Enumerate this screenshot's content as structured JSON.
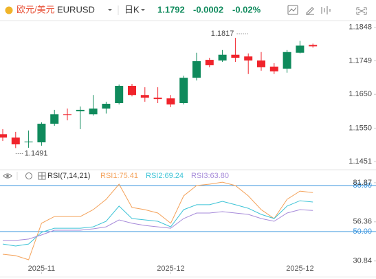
{
  "header": {
    "name": "欧元/美元",
    "symbol": "EURUSD",
    "period": "日K",
    "price": "1.1792",
    "change": "-0.0002",
    "change_pct": "-0.02%"
  },
  "chart_data": [
    {
      "type": "candlestick",
      "categories": [
        null,
        null,
        null,
        "2025-11",
        null,
        null,
        null,
        null,
        null,
        null,
        null,
        null,
        null,
        "2025-12",
        null,
        null,
        null,
        null,
        null,
        null,
        null,
        null,
        null,
        "2025-12",
        null
      ],
      "open": [
        1.1532,
        1.1522,
        1.1508,
        1.1508,
        1.1563,
        1.1591,
        1.16,
        1.1591,
        1.1608,
        1.1624,
        1.1675,
        1.1648,
        1.164,
        1.1638,
        1.1624,
        1.1699,
        1.1752,
        1.175,
        1.1767,
        1.1762,
        1.175,
        1.1732,
        1.1726,
        1.1773,
        1.1796
      ],
      "high": [
        1.1547,
        1.1539,
        1.1543,
        1.1567,
        1.1604,
        1.1608,
        1.1614,
        1.1648,
        1.1628,
        1.1679,
        1.1681,
        1.1671,
        1.1671,
        1.1648,
        1.1705,
        1.1773,
        1.1758,
        1.1781,
        1.1817,
        1.1771,
        1.1775,
        1.1742,
        1.1781,
        1.1808,
        1.18
      ],
      "low": [
        1.1512,
        1.1491,
        1.1492,
        1.1498,
        1.1557,
        1.1573,
        1.1547,
        1.1587,
        1.1593,
        1.162,
        1.1644,
        1.1628,
        1.1624,
        1.1612,
        1.162,
        1.1691,
        1.173,
        1.1746,
        1.1746,
        1.171,
        1.172,
        1.171,
        1.1714,
        1.1771,
        1.1788
      ],
      "close": [
        1.1522,
        1.1502,
        1.151,
        1.1563,
        1.1591,
        1.1589,
        1.1604,
        1.1608,
        1.1622,
        1.1675,
        1.1648,
        1.164,
        1.1636,
        1.162,
        1.1699,
        1.1748,
        1.1736,
        1.1767,
        1.1758,
        1.175,
        1.173,
        1.1718,
        1.1775,
        1.1794,
        1.1792
      ],
      "up_color": "#0f8a5c",
      "down_color": "#f0232b",
      "ylim": [
        1.1431,
        1.1868
      ],
      "yticks": [
        1.1848,
        1.1749,
        {
          "value": 1.165,
          "label": "1.1650"
        },
        {
          "value": 1.155,
          "label": "1.1550"
        },
        1.1451
      ]
    },
    {
      "type": "line",
      "title": "RSI(7,14,21)",
      "series": [
        {
          "name": "RSI1:75.41",
          "color": "#f4a25a",
          "values": [
            35.2,
            34.3,
            31.6,
            55.4,
            59.8,
            59.8,
            59.8,
            64.3,
            71.0,
            80.9,
            65.7,
            64.3,
            62.1,
            55.4,
            73.3,
            80.0,
            80.9,
            82.2,
            80.0,
            73.3,
            64.3,
            58.5,
            71.0,
            76.4,
            75.41
          ]
        },
        {
          "name": "RSI2:69.24",
          "color": "#3cc3d6",
          "values": [
            41.9,
            40.6,
            41.9,
            49.5,
            52.2,
            52.2,
            52.2,
            53.1,
            56.7,
            66.6,
            58.5,
            57.6,
            56.7,
            53.1,
            64.3,
            67.5,
            67.5,
            69.7,
            67.5,
            65.2,
            61.2,
            58.5,
            66.6,
            70.1,
            69.24
          ]
        },
        {
          "name": "RSI3:63.80",
          "color": "#a68ad9",
          "values": [
            44.2,
            44.2,
            45.1,
            47.8,
            50.9,
            50.9,
            50.9,
            51.8,
            53.1,
            57.6,
            55.4,
            54.0,
            53.1,
            52.2,
            58.5,
            62.1,
            62.1,
            63.0,
            62.1,
            61.2,
            58.5,
            56.7,
            62.1,
            64.3,
            63.8
          ]
        }
      ],
      "ylim": [
        24,
        83.6
      ],
      "yticks": [
        81.87,
        56.36,
        30.84
      ],
      "hlines": [
        {
          "value": 80,
          "label": "80.00"
        },
        {
          "value": 50,
          "label": "50.00"
        }
      ],
      "hline_color": "#3a95de"
    }
  ]
}
